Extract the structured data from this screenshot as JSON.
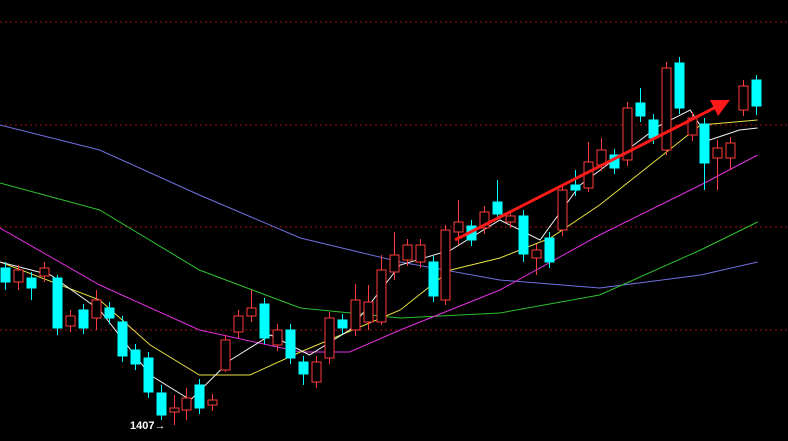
{
  "chart_data": {
    "type": "candlestick",
    "annotation": "1407→",
    "xlim": [
      -0.4,
      60.45
    ],
    "ylim": [
      1391,
      1832
    ],
    "gridlines": [
      1810,
      1707,
      1605,
      1502
    ],
    "grid_color": "#a01010",
    "up_color": "#ff3b3b",
    "down_color": "#00ffff",
    "open": [
      1564,
      1550,
      1554,
      1556,
      1554,
      1506,
      1522,
      1514,
      1524,
      1510,
      1482,
      1474,
      1439,
      1420,
      1422,
      1447,
      1427,
      1462,
      1500,
      1516,
      1528,
      1487,
      1502,
      1470,
      1450,
      1474,
      1512,
      1502,
      1510,
      1510,
      1560,
      1572,
      1570,
      1570,
      1532,
      1600,
      1606,
      1604,
      1630,
      1610,
      1616,
      1574,
      1594,
      1602,
      1647,
      1644,
      1667,
      1677,
      1672,
      1729,
      1712,
      1682,
      1769,
      1697,
      1708,
      1674,
      1674,
      1722,
      1752
    ],
    "high": [
      1570,
      1567,
      1560,
      1570,
      1557,
      1522,
      1528,
      1542,
      1530,
      1516,
      1488,
      1480,
      1447,
      1437,
      1444,
      1453,
      1438,
      1497,
      1522,
      1542,
      1534,
      1508,
      1508,
      1476,
      1476,
      1520,
      1518,
      1548,
      1547,
      1577,
      1600,
      1593,
      1593,
      1576,
      1607,
      1632,
      1612,
      1626,
      1652,
      1622,
      1622,
      1588,
      1600,
      1648,
      1662,
      1690,
      1694,
      1683,
      1730,
      1744,
      1718,
      1770,
      1775,
      1720,
      1714,
      1692,
      1695,
      1752,
      1757
    ],
    "low": [
      1542,
      1542,
      1532,
      1550,
      1497,
      1500,
      1498,
      1502,
      1508,
      1470,
      1462,
      1434,
      1412,
      1407,
      1412,
      1418,
      1421,
      1460,
      1494,
      1510,
      1488,
      1481,
      1468,
      1447,
      1444,
      1468,
      1498,
      1496,
      1502,
      1507,
      1552,
      1566,
      1564,
      1530,
      1527,
      1587,
      1586,
      1598,
      1612,
      1604,
      1570,
      1557,
      1564,
      1596,
      1636,
      1640,
      1661,
      1658,
      1666,
      1710,
      1688,
      1677,
      1718,
      1691,
      1642,
      1642,
      1662,
      1716,
      1717
    ],
    "close": [
      1550,
      1562,
      1544,
      1564,
      1504,
      1516,
      1504,
      1532,
      1514,
      1476,
      1468,
      1440,
      1417,
      1424,
      1434,
      1424,
      1432,
      1492,
      1516,
      1524,
      1494,
      1502,
      1474,
      1458,
      1470,
      1514,
      1504,
      1532,
      1530,
      1562,
      1577,
      1587,
      1587,
      1536,
      1602,
      1610,
      1592,
      1620,
      1618,
      1616,
      1578,
      1582,
      1570,
      1642,
      1642,
      1670,
      1682,
      1664,
      1724,
      1716,
      1694,
      1764,
      1724,
      1714,
      1669,
      1684,
      1689,
      1746,
      1726
    ],
    "series": [
      {
        "color": "#7070e0",
        "x": [
          -0.4,
          7.3,
          15.0,
          22.8,
          30.5,
          38.2,
          45.9,
          53.7,
          58.1
        ],
        "values": [
          1707,
          1682,
          1637,
          1594,
          1570,
          1552,
          1544,
          1557,
          1570
        ]
      },
      {
        "color": "#30c030",
        "x": [
          -0.4,
          7.3,
          15.0,
          22.8,
          30.5,
          38.2,
          45.9,
          53.7,
          58.1
        ],
        "values": [
          1649,
          1622,
          1562,
          1524,
          1514,
          1519,
          1537,
          1582,
          1610
        ]
      },
      {
        "color": "#e030e0",
        "x": [
          -0.4,
          7.3,
          15.0,
          22.8,
          26.6,
          30.5,
          38.2,
          45.9,
          53.7,
          58.1
        ],
        "values": [
          1604,
          1547,
          1502,
          1480,
          1480,
          1502,
          1542,
          1597,
          1647,
          1677
        ]
      },
      {
        "color": "#e8e040",
        "x": [
          -0.4,
          7.3,
          11.2,
          15.0,
          18.9,
          22.8,
          30.5,
          34.4,
          38.2,
          42.1,
          45.9,
          49.8,
          53.7,
          58.1
        ],
        "values": [
          1570,
          1532,
          1487,
          1457,
          1457,
          1480,
          1522,
          1562,
          1574,
          1594,
          1627,
          1667,
          1707,
          1712
        ]
      },
      {
        "color": "#f0f0f0",
        "x": [
          -0.4,
          3.5,
          7.3,
          11.2,
          14.3,
          17.4,
          20.5,
          23.5,
          26.6,
          30.5,
          34.4,
          38.2,
          41.3,
          44.4,
          47.5,
          50.6,
          52.9,
          54.4,
          56.7,
          58.1
        ],
        "values": [
          1570,
          1557,
          1522,
          1457,
          1432,
          1472,
          1497,
          1477,
          1502,
          1567,
          1582,
          1612,
          1592,
          1647,
          1677,
          1707,
          1722,
          1692,
          1702,
          1704
        ]
      }
    ]
  }
}
